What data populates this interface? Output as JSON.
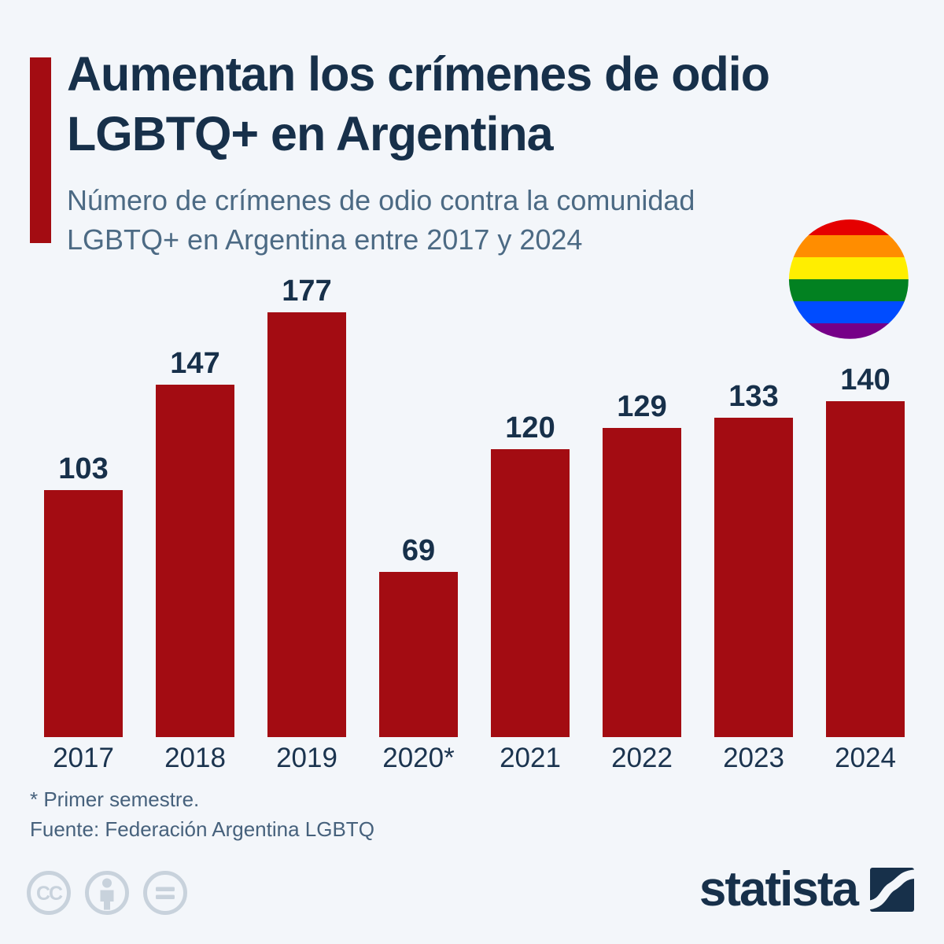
{
  "header": {
    "title_line1": "Aumentan los crímenes de odio",
    "title_line2": "LGBTQ+ en Argentina",
    "subtitle_line1": "Número de crímenes de odio contra la comunidad",
    "subtitle_line2": "LGBTQ+ en Argentina entre 2017 y 2024"
  },
  "chart_data": {
    "type": "bar",
    "categories": [
      "2017",
      "2018",
      "2019",
      "2020*",
      "2021",
      "2022",
      "2023",
      "2024"
    ],
    "values": [
      103,
      147,
      177,
      69,
      120,
      129,
      133,
      140
    ],
    "title": "Aumentan los crímenes de odio LGBTQ+ en Argentina",
    "subtitle": "Número de crímenes de odio contra la comunidad LGBTQ+ en Argentina entre 2017 y 2024",
    "xlabel": "",
    "ylabel": "",
    "ylim": [
      0,
      180
    ],
    "grid": false,
    "legend": false,
    "value_labels_shown": true,
    "bar_color": "#A30C12"
  },
  "footer": {
    "note": "* Primer semestre.",
    "source": "Fuente: Federación Argentina LGBTQ"
  },
  "branding": {
    "logo_text": "statista",
    "license_icons": [
      "cc-icon",
      "attribution-person-icon",
      "no-derivatives-equals-icon"
    ]
  },
  "colors": {
    "background": "#F3F6FA",
    "bar": "#A30C12",
    "accent_bar": "#A30C12",
    "title_navy": "#17304A",
    "subtitle_slate": "#4C6A84",
    "footnote_slate": "#46617C",
    "license_icon_gray": "#C8D2DC",
    "pride_stripes": [
      "#E50000",
      "#FF8D00",
      "#FFEE00",
      "#028121",
      "#004CFF",
      "#760088"
    ]
  }
}
